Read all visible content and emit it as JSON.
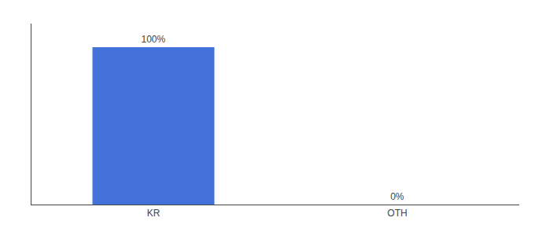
{
  "chart_data": {
    "type": "bar",
    "categories": [
      "KR",
      "OTH"
    ],
    "values": [
      100,
      0
    ],
    "value_labels": [
      "100%",
      "0%"
    ],
    "color": "#4472db",
    "ylim": [
      0,
      115
    ],
    "grid": false,
    "data_labels": true,
    "tick_labels": "x"
  }
}
